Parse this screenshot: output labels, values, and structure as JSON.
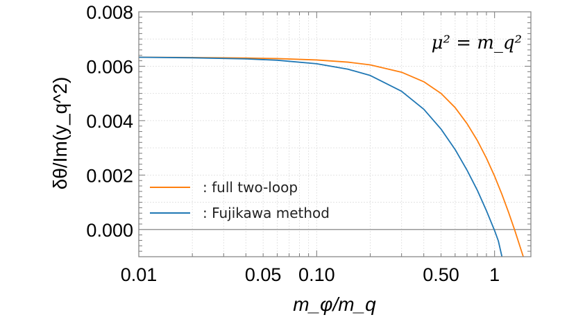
{
  "chart_data": {
    "type": "line",
    "title": "",
    "xlabel": "m_φ/m_q",
    "ylabel": "δθ/Im(y_q^2)",
    "xscale": "log",
    "xlim": [
      0.01,
      1.6
    ],
    "ylim": [
      -0.001,
      0.008
    ],
    "grid": true,
    "legend_position": "lower-left",
    "annotation": "μ² = m_q²",
    "x_ticks": [
      {
        "value": 0.01,
        "label": "0.01"
      },
      {
        "value": 0.05,
        "label": "0.05"
      },
      {
        "value": 0.1,
        "label": "0.10"
      },
      {
        "value": 0.5,
        "label": "0.50"
      },
      {
        "value": 1,
        "label": "1"
      }
    ],
    "y_ticks": [
      {
        "value": 0.0,
        "label": "0.000"
      },
      {
        "value": 0.002,
        "label": "0.002"
      },
      {
        "value": 0.004,
        "label": "0.004"
      },
      {
        "value": 0.006,
        "label": "0.006"
      },
      {
        "value": 0.008,
        "label": "0.008"
      }
    ],
    "series": [
      {
        "name": ": full two-loop",
        "color": "#ff7f0e",
        "x": [
          0.01,
          0.02,
          0.04,
          0.06,
          0.1,
          0.15,
          0.2,
          0.3,
          0.4,
          0.5,
          0.6,
          0.7,
          0.8,
          0.9,
          1.0,
          1.1,
          1.2,
          1.3,
          1.4,
          1.45
        ],
        "y": [
          0.00633,
          0.00632,
          0.0063,
          0.00628,
          0.00623,
          0.00615,
          0.00605,
          0.00578,
          0.00543,
          0.005,
          0.00448,
          0.00389,
          0.00327,
          0.00262,
          0.00196,
          0.00129,
          0.00062,
          -4e-05,
          -0.00069,
          -0.001
        ]
      },
      {
        "name": ": Fujikawa method",
        "color": "#1f77b4",
        "x": [
          0.01,
          0.02,
          0.04,
          0.06,
          0.1,
          0.15,
          0.2,
          0.3,
          0.4,
          0.5,
          0.6,
          0.7,
          0.8,
          0.9,
          1.0,
          1.05,
          1.1
        ],
        "y": [
          0.00633,
          0.00631,
          0.00627,
          0.00622,
          0.00609,
          0.00589,
          0.00566,
          0.00508,
          0.00442,
          0.00369,
          0.00294,
          0.00218,
          0.00144,
          0.00069,
          -4e-05,
          -0.00042,
          -0.001
        ]
      }
    ]
  }
}
